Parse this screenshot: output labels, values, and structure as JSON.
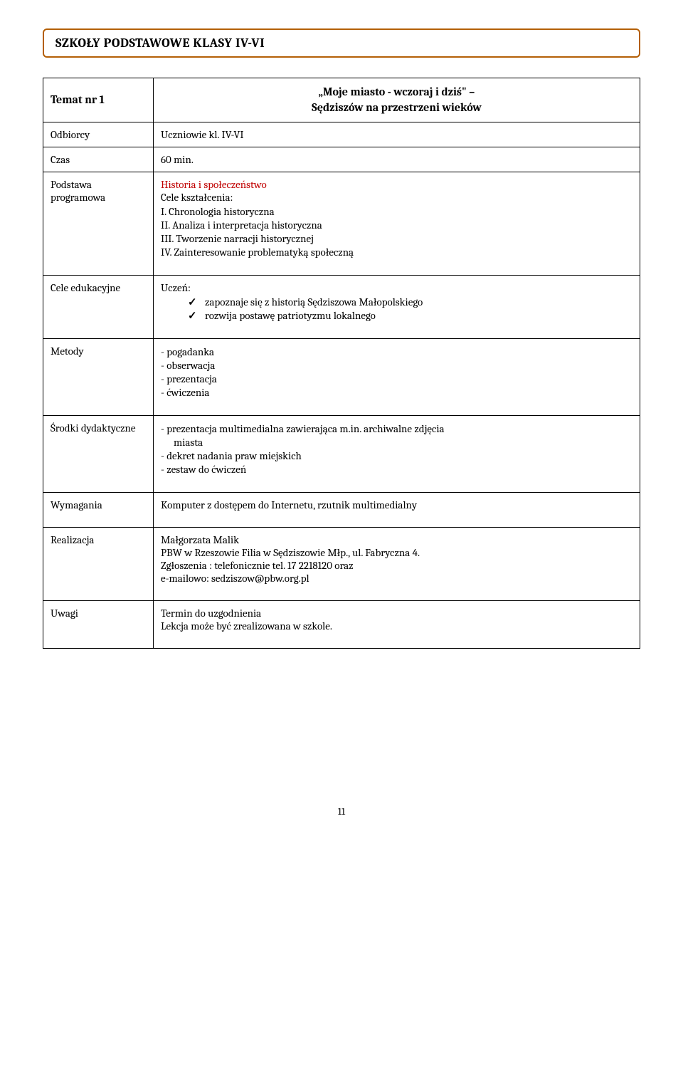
{
  "banner": {
    "title": "SZKOŁY PODSTAWOWE KLASY IV-VI"
  },
  "topic": {
    "label": "Temat nr 1",
    "title_line1": "„Moje miasto - wczoraj i dziś\" –",
    "title_line2": "Sędziszów na przestrzeni wieków"
  },
  "rows": {
    "odbiorcy": {
      "label": "Odbiorcy",
      "value": "Uczniowie kl. IV-VI"
    },
    "czas": {
      "label": "Czas",
      "value": "60 min."
    },
    "podstawa": {
      "label": "Podstawa programowa",
      "section": "Historia i społeczeństwo",
      "line0": "Cele kształcenia:",
      "items": [
        "I. Chronologia historyczna",
        "II. Analiza i interpretacja historyczna",
        "III. Tworzenie narracji historycznej",
        "IV. Zainteresowanie problematyką społeczną"
      ]
    },
    "cele": {
      "label": "Cele edukacyjne",
      "lead": "Uczeń:",
      "items": [
        "zapoznaje się z historią Sędziszowa Małopolskiego",
        "rozwija postawę patriotyzmu lokalnego"
      ]
    },
    "metody": {
      "label": "Metody",
      "items": [
        "- pogadanka",
        "- obserwacja",
        "- prezentacja",
        "- ćwiczenia"
      ]
    },
    "srodki": {
      "label": "Środki dydaktyczne",
      "items": [
        "- prezentacja multimedialna zawierająca m.in.  archiwalne zdjęcia",
        "miasta",
        "- dekret nadania praw miejskich",
        "- zestaw do ćwiczeń"
      ],
      "indent_map": [
        false,
        true,
        false,
        false
      ]
    },
    "wymagania": {
      "label": "Wymagania",
      "value": "Komputer z dostępem do Internetu, rzutnik  multimedialny"
    },
    "realizacja": {
      "label": "Realizacja",
      "line0": "Małgorzata Malik",
      "line1": "PBW w Rzeszowie Filia w Sędziszowie Młp., ul. Fabryczna 4.",
      "line2": "Zgłoszenia : telefonicznie tel. 17 2218120  oraz",
      "line3": "e-mailowo: sedziszow@pbw.org.pl"
    },
    "uwagi": {
      "label": "Uwagi",
      "line0": "Termin do uzgodnienia",
      "line1": "Lekcja może być zrealizowana w szkole."
    }
  },
  "page_number": "11"
}
